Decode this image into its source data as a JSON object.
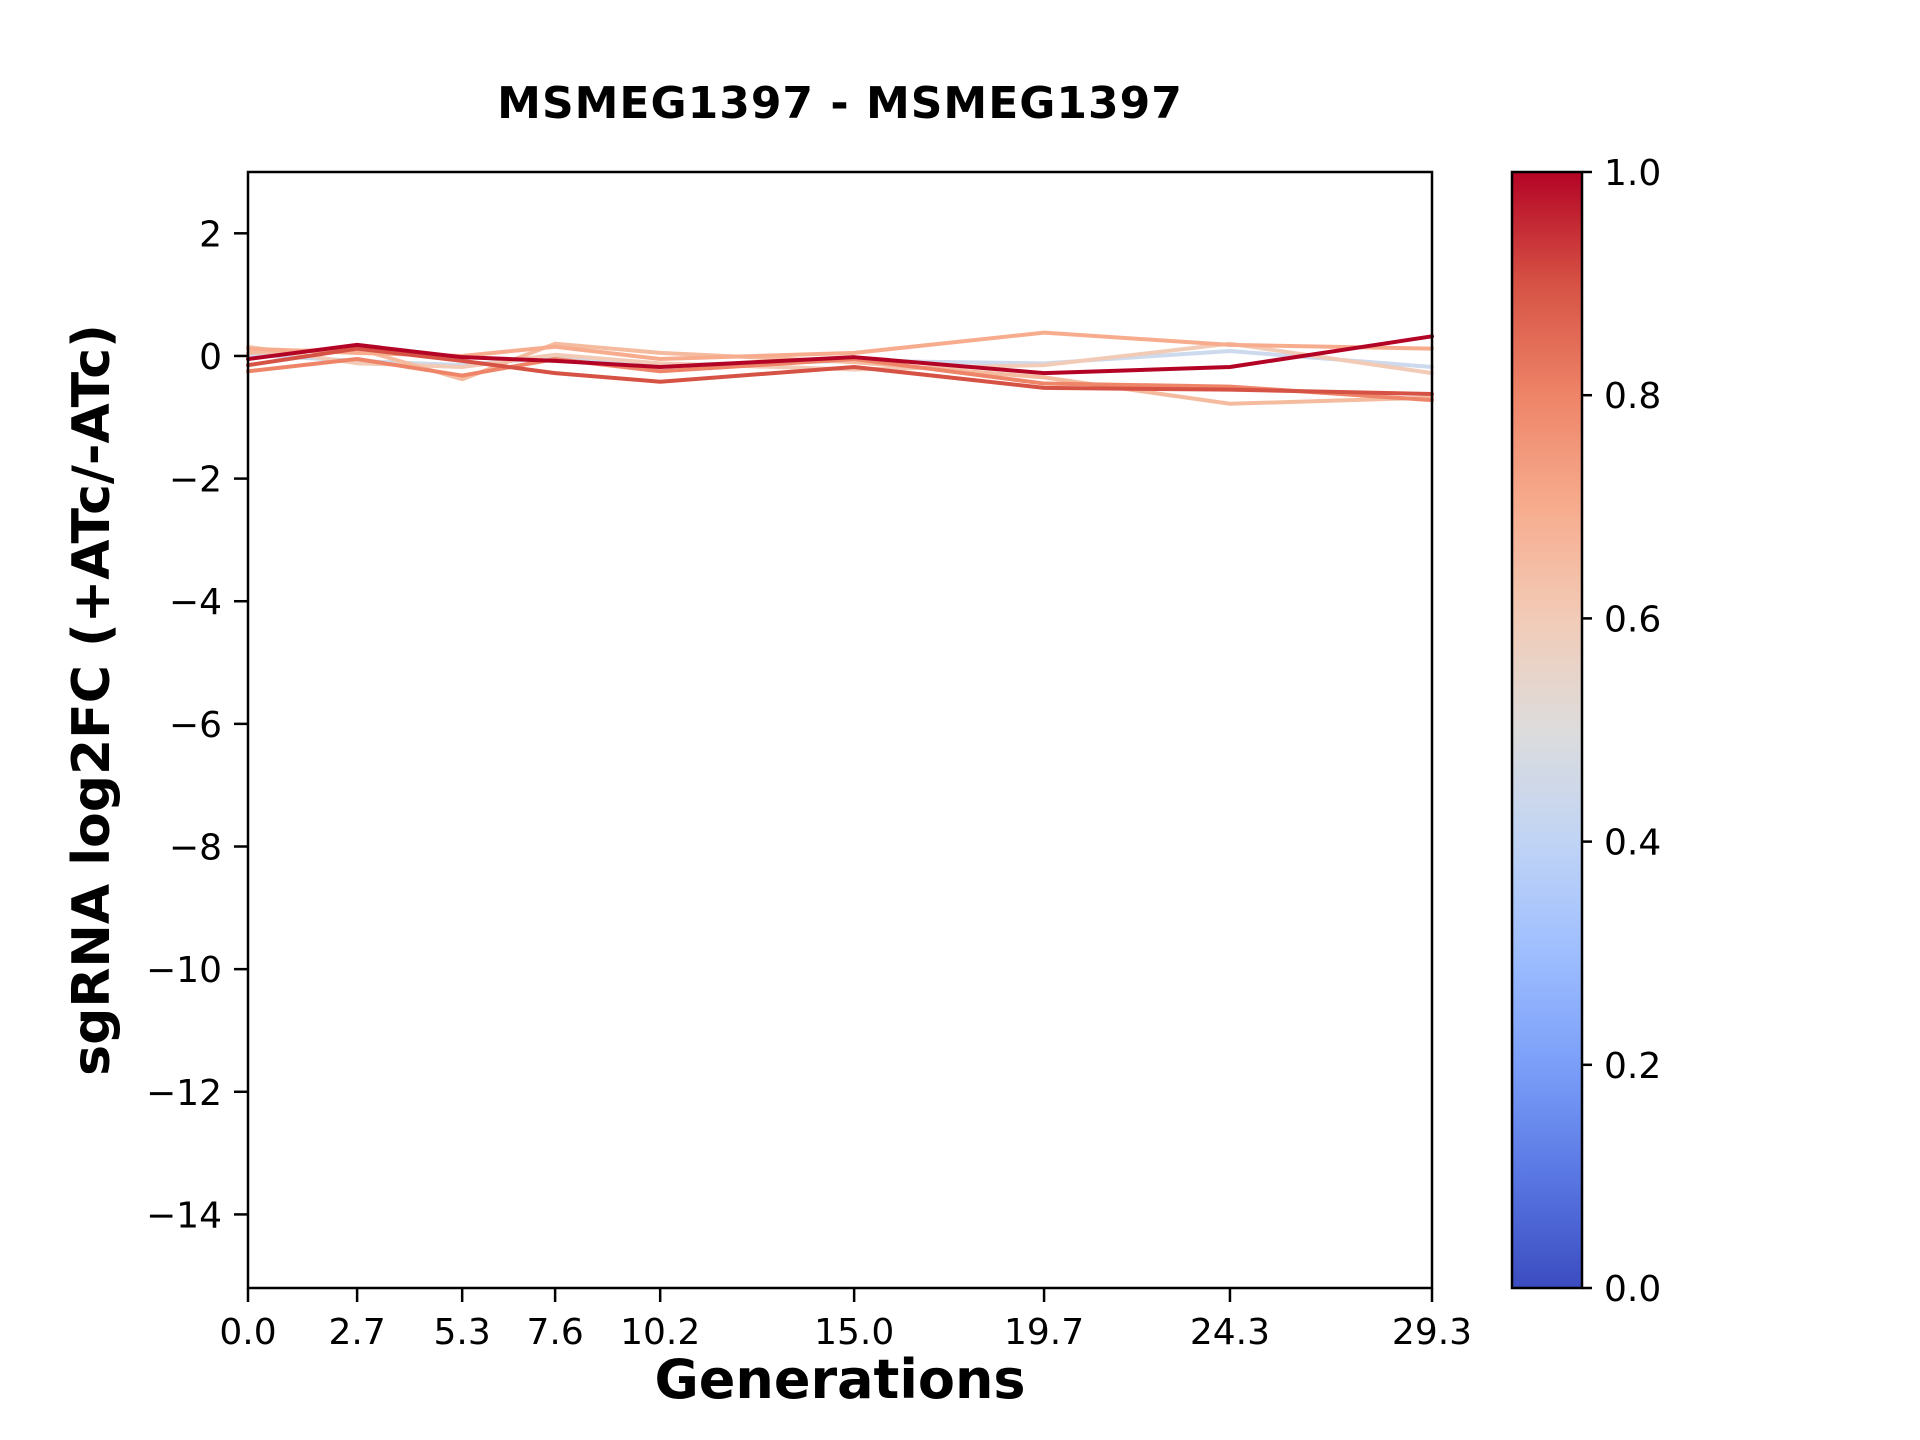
{
  "figure": {
    "background": "#ffffff",
    "frame_color": "#000000"
  },
  "chart_data": {
    "type": "line",
    "title": "MSMEG1397 - MSMEG1397",
    "xlabel": "Generations",
    "ylabel": "sgRNA log2FC (+ATc/-ATc)",
    "grid": false,
    "legend": "none",
    "x": [
      0.0,
      2.7,
      5.3,
      7.6,
      10.2,
      15.0,
      19.7,
      24.3,
      29.3
    ],
    "xtick_labels": [
      "0.0",
      "2.7",
      "5.3",
      "7.6",
      "10.2",
      "15.0",
      "19.7",
      "24.3",
      "29.3"
    ],
    "ytick_values": [
      2,
      0,
      -2,
      -4,
      -6,
      -8,
      -10,
      -12,
      -14
    ],
    "ytick_labels": [
      "2",
      "0",
      "−2",
      "−4",
      "−6",
      "−8",
      "−10",
      "−12",
      "−14"
    ],
    "xlim": [
      0,
      29.3
    ],
    "ylim": [
      -15.2,
      3.0
    ],
    "series": [
      {
        "color_value": 0.45,
        "color": "#cdd9ec",
        "values": [
          0.02,
          -0.08,
          -0.15,
          -0.02,
          -0.15,
          -0.08,
          -0.12,
          0.08,
          -0.18
        ]
      },
      {
        "color_value": 0.6,
        "color": "#f2cbb7",
        "values": [
          0.15,
          -0.12,
          -0.18,
          0.02,
          -0.12,
          -0.22,
          -0.15,
          0.2,
          -0.28
        ]
      },
      {
        "color_value": 0.65,
        "color": "#f4bb9f",
        "values": [
          0.05,
          0.12,
          -0.38,
          0.2,
          0.05,
          -0.1,
          -0.35,
          -0.78,
          -0.68
        ]
      },
      {
        "color_value": 0.7,
        "color": "#f7ac8e",
        "values": [
          0.12,
          0.05,
          0.0,
          0.15,
          -0.05,
          0.05,
          0.38,
          0.18,
          0.12
        ]
      },
      {
        "color_value": 0.8,
        "color": "#ee8468",
        "values": [
          -0.25,
          -0.05,
          -0.32,
          -0.05,
          -0.25,
          -0.05,
          -0.45,
          -0.5,
          -0.72
        ]
      },
      {
        "color_value": 0.9,
        "color": "#d65244",
        "values": [
          -0.15,
          0.12,
          -0.08,
          -0.28,
          -0.42,
          -0.18,
          -0.52,
          -0.55,
          -0.62
        ]
      },
      {
        "color_value": 1.0,
        "color": "#b40426",
        "values": [
          -0.05,
          0.18,
          -0.02,
          -0.08,
          -0.18,
          -0.02,
          -0.28,
          -0.18,
          0.32
        ]
      }
    ],
    "colorbar": {
      "colormap": "coolwarm",
      "range": [
        0.0,
        1.0
      ],
      "tick_values": [
        1.0,
        0.8,
        0.6,
        0.4,
        0.2,
        0.0
      ],
      "tick_labels": [
        "1.0",
        "0.8",
        "0.6",
        "0.4",
        "0.2",
        "0.0"
      ],
      "gradient_stops": [
        {
          "pos": "0%",
          "color": "#b40426"
        },
        {
          "pos": "10%",
          "color": "#d65244"
        },
        {
          "pos": "20%",
          "color": "#ee8468"
        },
        {
          "pos": "30%",
          "color": "#f7ac8e"
        },
        {
          "pos": "40%",
          "color": "#f2cbb7"
        },
        {
          "pos": "50%",
          "color": "#dddcdc"
        },
        {
          "pos": "60%",
          "color": "#c0d4f5"
        },
        {
          "pos": "70%",
          "color": "#9ebeff"
        },
        {
          "pos": "80%",
          "color": "#7b9ff9"
        },
        {
          "pos": "90%",
          "color": "#5977e3"
        },
        {
          "pos": "100%",
          "color": "#3b4cc0"
        }
      ]
    }
  }
}
